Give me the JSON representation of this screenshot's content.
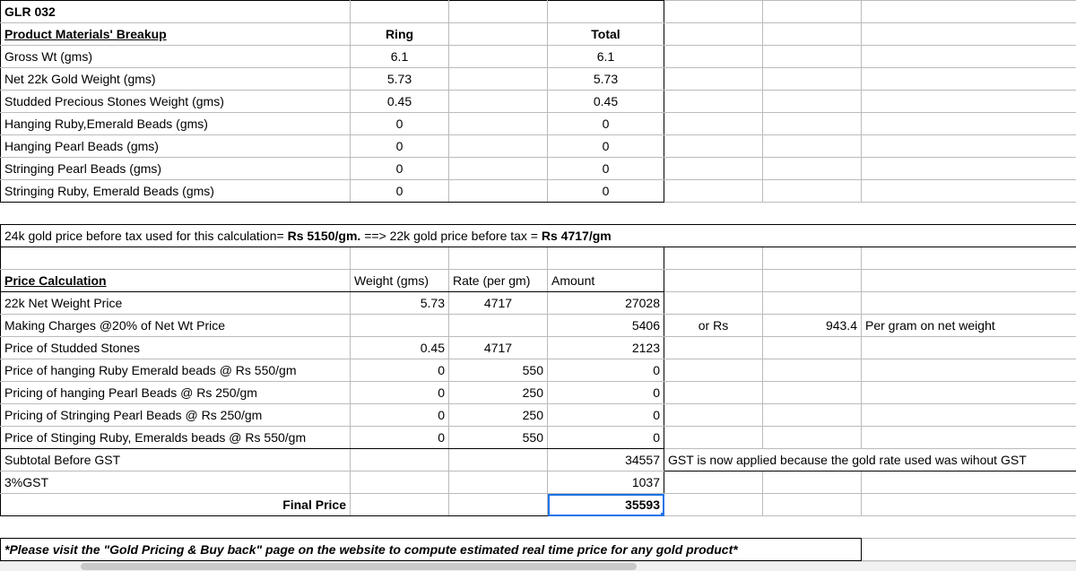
{
  "header": {
    "product_code": "GLR 032",
    "materials_heading": "Product Materials' Breakup",
    "col_ring": "Ring",
    "col_total": "Total"
  },
  "materials": [
    {
      "label": "Gross Wt (gms)",
      "ring": "6.1",
      "total": "6.1"
    },
    {
      "label": "Net 22k Gold Weight (gms)",
      "ring": "5.73",
      "total": "5.73"
    },
    {
      "label": "Studded Precious Stones Weight (gms)",
      "ring": "0.45",
      "total": "0.45"
    },
    {
      "label": "Hanging Ruby,Emerald Beads (gms)",
      "ring": "0",
      "total": "0"
    },
    {
      "label": "Hanging Pearl Beads (gms)",
      "ring": "0",
      "total": "0"
    },
    {
      "label": "Stringing Pearl Beads (gms)",
      "ring": "0",
      "total": "0"
    },
    {
      "label": "Stringing Ruby, Emerald Beads (gms)",
      "ring": "0",
      "total": "0"
    }
  ],
  "gold_price_note": {
    "part1": "24k gold price before tax used for this calculation= ",
    "part2": "Rs 5150/gm.",
    "part3": " ==> 22k gold price before tax =",
    "part4": "Rs 4717/gm"
  },
  "calc": {
    "heading": "Price Calculation",
    "col_weight": "Weight (gms)",
    "col_rate": "Rate (per gm)",
    "col_amount": "Amount",
    "rows": [
      {
        "label": "22k Net Weight Price",
        "weight": "5.73",
        "rate": "4717",
        "amount": "27028"
      },
      {
        "label": "Making Charges @20% of Net Wt Price",
        "weight": "",
        "rate": "",
        "amount": "5406"
      },
      {
        "label": "Price of Studded Stones",
        "weight": "0.45",
        "rate": "4717",
        "amount": "2123"
      },
      {
        "label": "Price of hanging Ruby Emerald beads @ Rs 550/gm",
        "weight": "0",
        "rate": "550",
        "amount": "0"
      },
      {
        "label": "Pricing of hanging Pearl Beads @ Rs 250/gm",
        "weight": "0",
        "rate": "250",
        "amount": "0"
      },
      {
        "label": "Pricing of Stringing Pearl Beads @ Rs 250/gm",
        "weight": "0",
        "rate": "250",
        "amount": "0"
      },
      {
        "label": "Price of Stinging Ruby, Emeralds beads @ Rs 550/gm",
        "weight": "0",
        "rate": "550",
        "amount": "0"
      }
    ],
    "subtotal_label": "Subtotal Before GST",
    "subtotal_amount": "34557",
    "gst_label": "3%GST",
    "gst_amount": "1037",
    "final_label": "Final Price",
    "final_amount": "35593",
    "making_or": "or Rs",
    "making_orval": "943.4",
    "making_ornote": "Per gram on net weight",
    "gst_note": "GST is now applied because the gold rate used was wihout GST"
  },
  "footnote": "*Please visit the \"Gold Pricing & Buy back\" page on the website to compute estimated real time price for any gold product*"
}
